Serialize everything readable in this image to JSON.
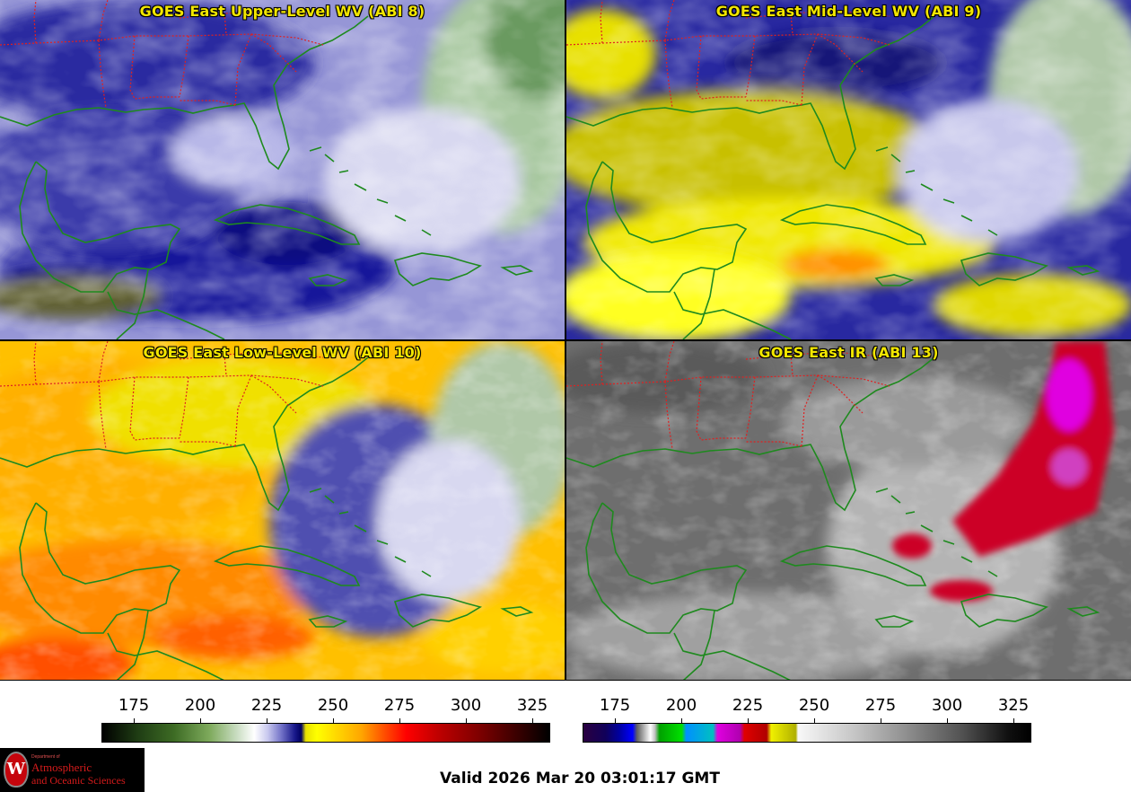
{
  "panels": [
    {
      "title": "GOES East Upper-Level WV (ABI 8)",
      "colormap": "water-vapor"
    },
    {
      "title": "GOES East Mid-Level WV (ABI 9)",
      "colormap": "water-vapor"
    },
    {
      "title": "GOES East Low-Level WV (ABI 10)",
      "colormap": "water-vapor"
    },
    {
      "title": "GOES East IR (ABI 13)",
      "colormap": "infrared"
    }
  ],
  "colorbars": {
    "water_vapor": {
      "range": [
        163,
        331
      ],
      "ticks": [
        "175",
        "200",
        "225",
        "250",
        "275",
        "300",
        "325"
      ]
    },
    "infrared": {
      "range": [
        163,
        331
      ],
      "ticks": [
        "175",
        "200",
        "225",
        "250",
        "275",
        "300",
        "325"
      ]
    }
  },
  "colors": {
    "coastline": "#1e8a1e",
    "state_borders": "#e02020",
    "title_text": "#f2e600"
  },
  "logo": {
    "dept": "Department of",
    "line1": "Atmospheric",
    "line2": "and Oceanic Sciences",
    "seal_letter": "W"
  },
  "valid_time": "Valid 2026 Mar 20 03:01:17 GMT"
}
